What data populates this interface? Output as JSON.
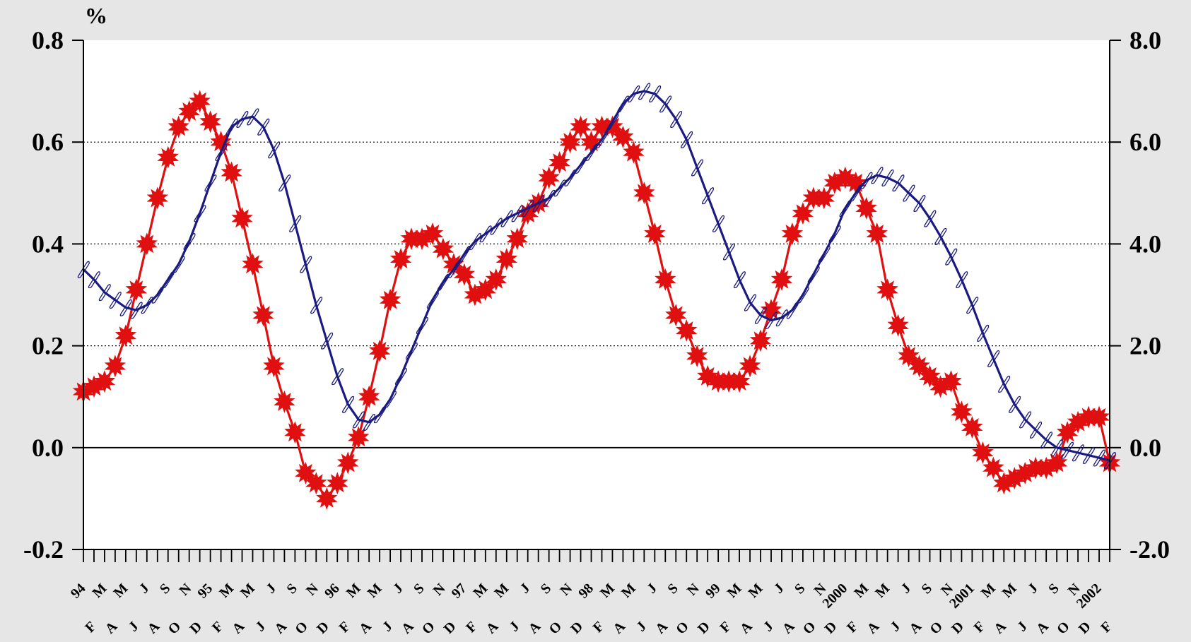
{
  "chart_data": {
    "type": "line",
    "unit_label": "%",
    "x_axis": {
      "start": "1994-01",
      "end": "2002-01",
      "year_labels": [
        "94",
        "95",
        "96",
        "97",
        "98",
        "99",
        "2000",
        "2001",
        "2002"
      ],
      "month_labels_upper": [
        "M",
        "M",
        "J",
        "S",
        "N"
      ],
      "month_labels_lower": [
        "F",
        "A",
        "J",
        "A",
        "O",
        "D"
      ]
    },
    "y_axis_left": {
      "min": -0.2,
      "max": 0.8,
      "ticks": [
        "-0.2",
        "0.0",
        "0.2",
        "0.4",
        "0.6",
        "0.8"
      ]
    },
    "y_axis_right": {
      "min": -2.0,
      "max": 8.0,
      "ticks": [
        "-2.0",
        "0.0",
        "2.0",
        "4.0",
        "6.0",
        "8.0"
      ]
    },
    "grid": {
      "horizontal": true,
      "style": "dotted"
    },
    "series": [
      {
        "axis": "left",
        "color": "#e01010",
        "marker": "star",
        "monthly_values": [
          0.11,
          0.12,
          0.13,
          0.16,
          0.22,
          0.31,
          0.4,
          0.49,
          0.57,
          0.63,
          0.66,
          0.68,
          0.64,
          0.6,
          0.54,
          0.45,
          0.36,
          0.26,
          0.16,
          0.09,
          0.03,
          -0.05,
          -0.07,
          -0.1,
          -0.07,
          -0.03,
          0.02,
          0.1,
          0.19,
          0.29,
          0.37,
          0.41,
          0.41,
          0.42,
          0.39,
          0.36,
          0.34,
          0.3,
          0.31,
          0.33,
          0.37,
          0.41,
          0.46,
          0.48,
          0.53,
          0.56,
          0.6,
          0.63,
          0.6,
          0.63,
          0.63,
          0.61,
          0.58,
          0.5,
          0.42,
          0.33,
          0.26,
          0.23,
          0.18,
          0.14,
          0.13,
          0.13,
          0.13,
          0.16,
          0.21,
          0.27,
          0.33,
          0.42,
          0.46,
          0.49,
          0.49,
          0.52,
          0.53,
          0.52,
          0.47,
          0.42,
          0.31,
          0.24,
          0.18,
          0.16,
          0.14,
          0.12,
          0.13,
          0.07,
          0.04,
          -0.01,
          -0.04,
          -0.07,
          -0.06,
          -0.05,
          -0.04,
          -0.04,
          -0.03,
          0.03,
          0.05,
          0.06,
          0.06,
          -0.03
        ]
      },
      {
        "axis": "right",
        "color": "#1a1a80",
        "marker": "paperclip",
        "monthly_values": [
          3.5,
          3.3,
          3.05,
          2.9,
          2.75,
          2.7,
          2.8,
          3.0,
          3.3,
          3.6,
          4.05,
          4.6,
          5.2,
          5.8,
          6.3,
          6.45,
          6.5,
          6.3,
          5.85,
          5.2,
          4.4,
          3.6,
          2.8,
          2.1,
          1.4,
          0.85,
          0.55,
          0.5,
          0.65,
          0.95,
          1.4,
          1.9,
          2.4,
          2.9,
          3.25,
          3.5,
          3.8,
          4.05,
          4.2,
          4.35,
          4.5,
          4.6,
          4.7,
          4.8,
          4.9,
          5.1,
          5.3,
          5.55,
          5.8,
          6.05,
          6.4,
          6.75,
          6.95,
          7.0,
          6.95,
          6.75,
          6.45,
          6.05,
          5.5,
          4.95,
          4.4,
          3.85,
          3.3,
          2.85,
          2.6,
          2.5,
          2.55,
          2.7,
          3.0,
          3.4,
          3.8,
          4.2,
          4.7,
          5.0,
          5.25,
          5.35,
          5.3,
          5.2,
          5.0,
          4.8,
          4.5,
          4.15,
          3.75,
          3.3,
          2.8,
          2.25,
          1.75,
          1.25,
          0.85,
          0.55,
          0.35,
          0.15,
          0.0,
          -0.05,
          -0.1,
          -0.15,
          -0.2,
          -0.25
        ]
      }
    ]
  }
}
